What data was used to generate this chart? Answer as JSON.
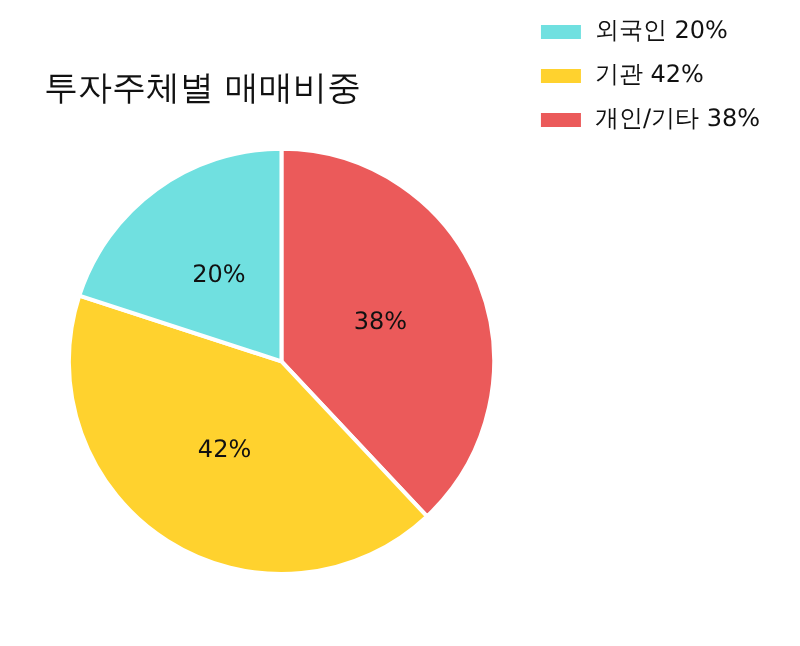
{
  "chart_data": {
    "type": "pie",
    "title": "투자주체별 매매비중",
    "categories": [
      "외국인 20%",
      "기관 42%",
      "개인/기타 38%"
    ],
    "values": [
      20,
      42,
      38
    ],
    "value_labels": [
      "20%",
      "42%",
      "38%"
    ],
    "colors": [
      "#70e0e0",
      "#ffd22e",
      "#eb5a5a"
    ],
    "legend": "top right"
  }
}
